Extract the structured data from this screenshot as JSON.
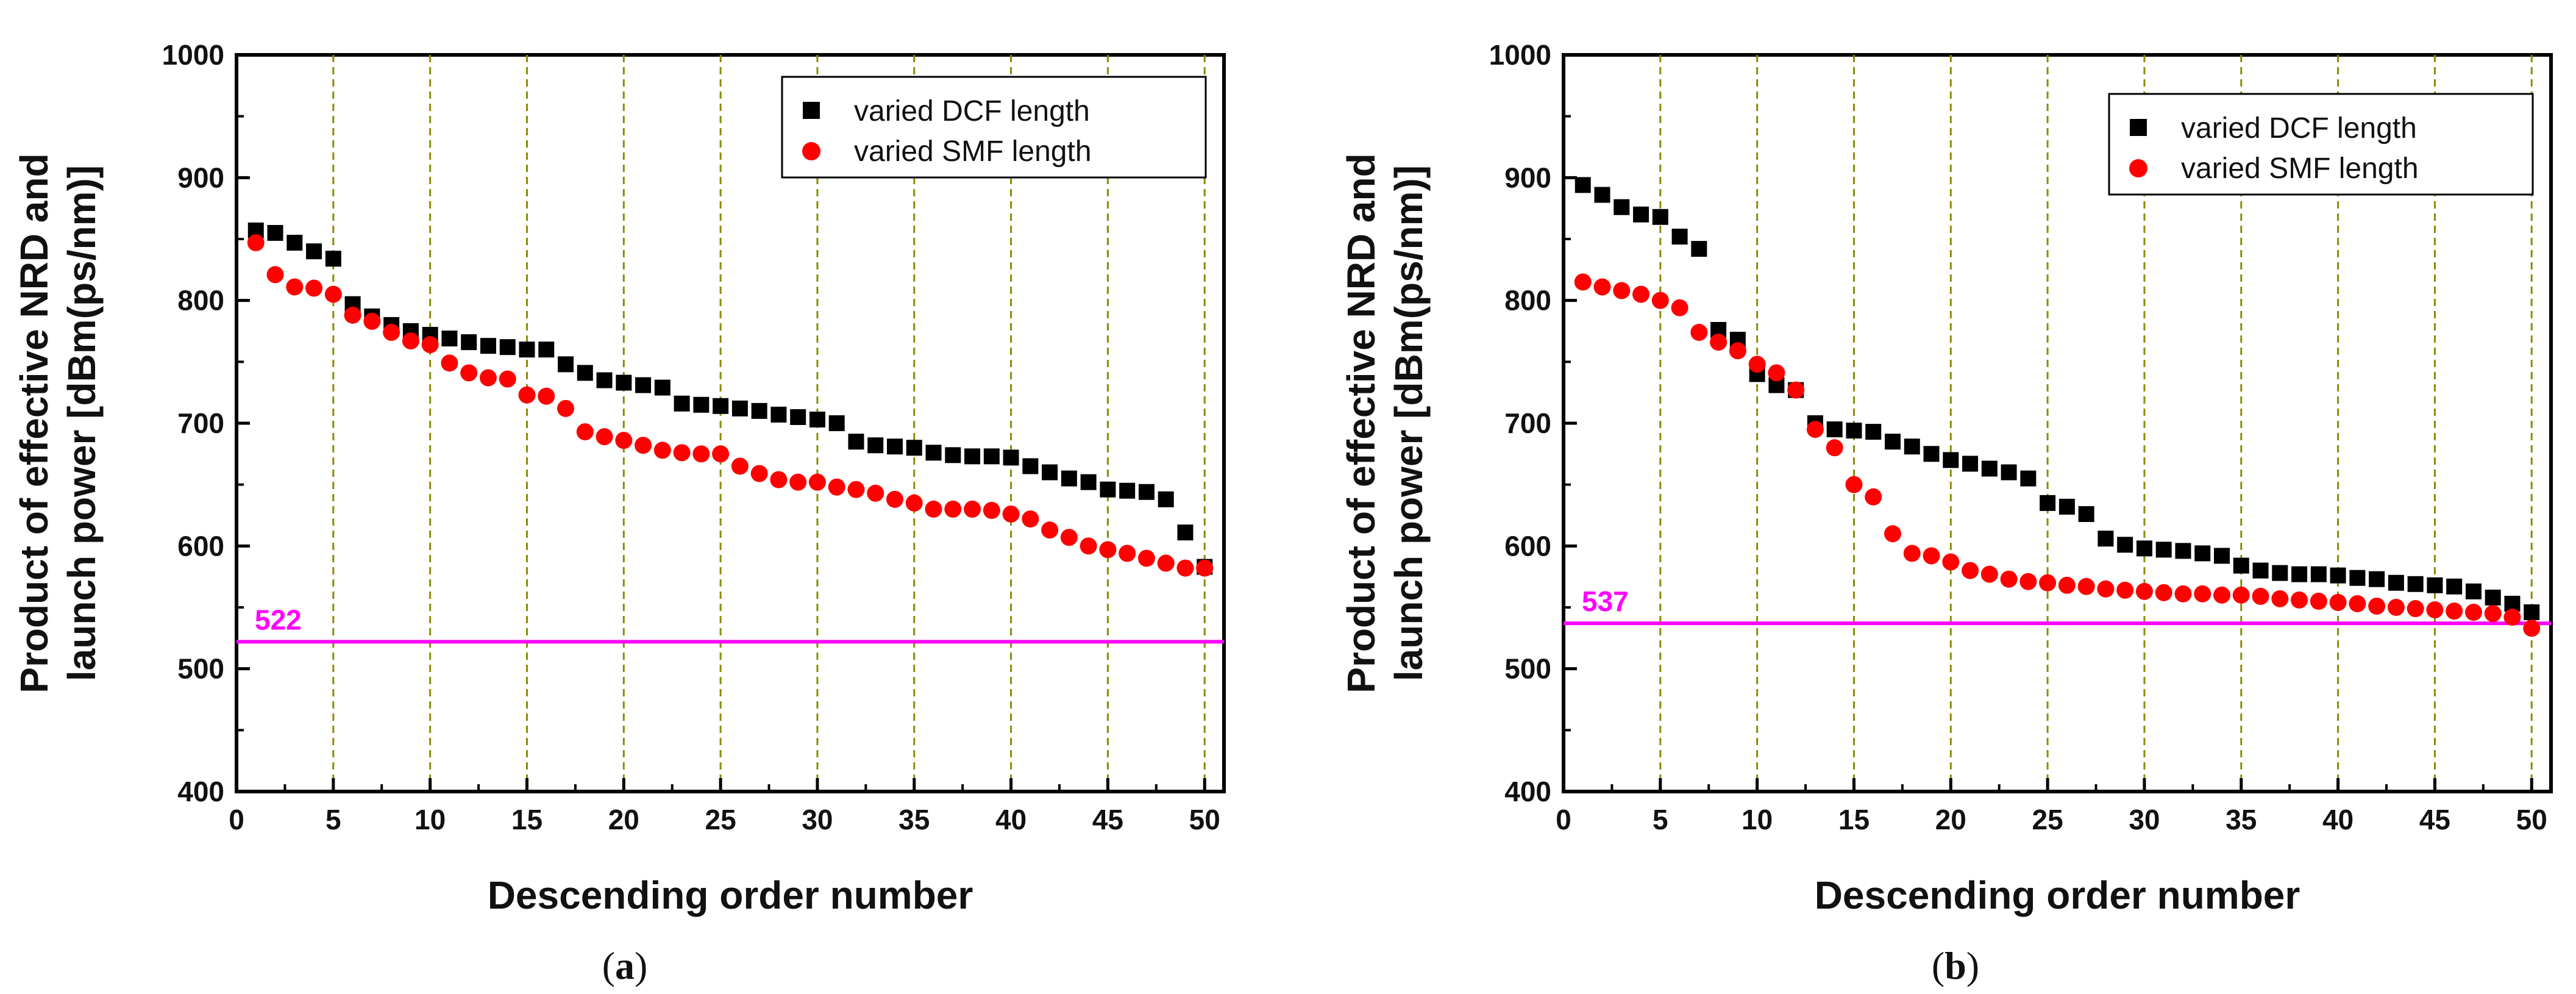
{
  "colors": {
    "dcf": "#000000",
    "smf": "#ff0000",
    "reference_line": "#ff00ff",
    "grid": "#8b8b00"
  },
  "legend": {
    "dcf_label": "varied DCF length",
    "smf_label": "varied SMF length",
    "dcf_marker": "square",
    "smf_marker": "circle"
  },
  "chart_data": [
    {
      "type": "scatter",
      "caption": {
        "open": "(",
        "letter": "a",
        "close": ")"
      },
      "xlabel": "Descending order number",
      "ylabel": [
        "Product of effective NRD and",
        "launch power [dBm(ps/nm)]"
      ],
      "xlim": [
        0,
        51
      ],
      "ylim": [
        400,
        1000
      ],
      "xticks": [
        0,
        5,
        10,
        15,
        20,
        25,
        30,
        35,
        40,
        45,
        50
      ],
      "yticks": [
        400,
        500,
        600,
        700,
        800,
        900,
        1000
      ],
      "vertical_grid_at": [
        5,
        10,
        15,
        20,
        25,
        30,
        35,
        40,
        45,
        50
      ],
      "reference_line": {
        "value": 522,
        "label": "522"
      },
      "legend_position": "top-right",
      "series": [
        {
          "name": "varied DCF length",
          "x": [
            1,
            2,
            3,
            4,
            5,
            6,
            7,
            8,
            9,
            10,
            11,
            12,
            13,
            14,
            15,
            16,
            17,
            18,
            19,
            20,
            21,
            22,
            23,
            24,
            25,
            26,
            27,
            28,
            29,
            30,
            31,
            32,
            33,
            34,
            35,
            36,
            37,
            38,
            39,
            40,
            41,
            42,
            43,
            44,
            45,
            46,
            47,
            48,
            49,
            50
          ],
          "y": [
            857,
            855,
            847,
            840,
            834,
            797,
            787,
            780,
            775,
            772,
            769,
            766,
            763,
            762,
            760,
            760,
            748,
            741,
            735,
            733,
            731,
            729,
            716,
            715,
            714,
            712,
            710,
            707,
            705,
            703,
            700,
            685,
            682,
            681,
            680,
            676,
            674,
            673,
            673,
            672,
            665,
            660,
            655,
            652,
            646,
            645,
            644,
            638,
            611,
            583
          ]
        },
        {
          "name": "varied SMF length",
          "x": [
            1,
            2,
            3,
            4,
            5,
            6,
            7,
            8,
            9,
            10,
            11,
            12,
            13,
            14,
            15,
            16,
            17,
            18,
            19,
            20,
            21,
            22,
            23,
            24,
            25,
            26,
            27,
            28,
            29,
            30,
            31,
            32,
            33,
            34,
            35,
            36,
            37,
            38,
            39,
            40,
            41,
            42,
            43,
            44,
            45,
            46,
            47,
            48,
            49,
            50
          ],
          "y": [
            847,
            821,
            811,
            810,
            805,
            788,
            783,
            774,
            767,
            764,
            749,
            741,
            737,
            736,
            723,
            722,
            712,
            693,
            689,
            686,
            682,
            678,
            676,
            675,
            675,
            665,
            659,
            654,
            652,
            652,
            648,
            646,
            643,
            638,
            635,
            630,
            630,
            630,
            629,
            626,
            622,
            613,
            607,
            600,
            597,
            594,
            590,
            586,
            582,
            582
          ]
        }
      ]
    },
    {
      "type": "scatter",
      "caption": {
        "open": "(",
        "letter": "b",
        "close": ")"
      },
      "xlabel": "Descending order number",
      "ylabel": [
        "Product of effective NRD and",
        "launch power [dBm(ps/nm)]"
      ],
      "xlim": [
        0,
        51
      ],
      "ylim": [
        400,
        1000
      ],
      "xticks": [
        0,
        5,
        10,
        15,
        20,
        25,
        30,
        35,
        40,
        45,
        50
      ],
      "yticks": [
        400,
        500,
        600,
        700,
        800,
        900,
        1000
      ],
      "vertical_grid_at": [
        5,
        10,
        15,
        20,
        25,
        30,
        35,
        40,
        45,
        50
      ],
      "reference_line": {
        "value": 537,
        "label": "537"
      },
      "legend_position": "top-right",
      "series": [
        {
          "name": "varied DCF length",
          "x": [
            1,
            2,
            3,
            4,
            5,
            6,
            7,
            8,
            9,
            10,
            11,
            12,
            13,
            14,
            15,
            16,
            17,
            18,
            19,
            20,
            21,
            22,
            23,
            24,
            25,
            26,
            27,
            28,
            29,
            30,
            31,
            32,
            33,
            34,
            35,
            36,
            37,
            38,
            39,
            40,
            41,
            42,
            43,
            44,
            45,
            46,
            47,
            48,
            49,
            50
          ],
          "y": [
            894,
            886,
            876,
            870,
            868,
            852,
            842,
            776,
            768,
            740,
            731,
            727,
            700,
            695,
            694,
            693,
            685,
            681,
            675,
            670,
            667,
            663,
            660,
            655,
            635,
            632,
            626,
            606,
            601,
            598,
            597,
            596,
            594,
            592,
            584,
            580,
            578,
            577,
            577,
            576,
            574,
            573,
            570,
            569,
            568,
            567,
            563,
            558,
            553,
            546
          ]
        },
        {
          "name": "varied SMF length",
          "x": [
            1,
            2,
            3,
            4,
            5,
            6,
            7,
            8,
            9,
            10,
            11,
            12,
            13,
            14,
            15,
            16,
            17,
            18,
            19,
            20,
            21,
            22,
            23,
            24,
            25,
            26,
            27,
            28,
            29,
            30,
            31,
            32,
            33,
            34,
            35,
            36,
            37,
            38,
            39,
            40,
            41,
            42,
            43,
            44,
            45,
            46,
            47,
            48,
            49,
            50
          ],
          "y": [
            815,
            811,
            808,
            805,
            800,
            794,
            774,
            766,
            759,
            748,
            741,
            727,
            695,
            680,
            650,
            640,
            610,
            594,
            592,
            587,
            580,
            577,
            573,
            571,
            570,
            568,
            567,
            565,
            564,
            563,
            562,
            561,
            561,
            560,
            560,
            559,
            557,
            556,
            555,
            554,
            553,
            551,
            550,
            549,
            548,
            547,
            546,
            545,
            542,
            533
          ]
        }
      ]
    }
  ]
}
